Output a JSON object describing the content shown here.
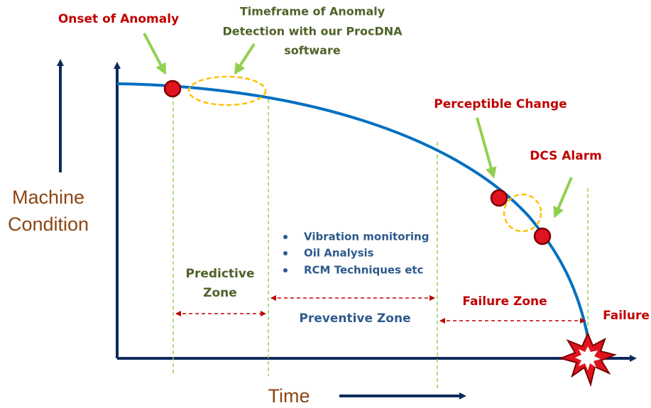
{
  "labels": {
    "onset": "Onset of Anomaly",
    "timeframe": [
      "Timeframe of Anomaly",
      "Detection with our ProcDNA",
      "software"
    ],
    "perceptible": "Perceptible Change",
    "dcs": "DCS Alarm",
    "failure": "Failure",
    "y_axis": [
      "Machine",
      "Condition"
    ],
    "x_axis": "Time",
    "techniques": [
      "Vibration monitoring",
      "Oil Analysis",
      "RCM Techniques etc"
    ],
    "predictive_zone": [
      "Predictive",
      "Zone"
    ],
    "preventive_zone": "Preventive Zone",
    "failure_zone": "Failure Zone"
  }
}
